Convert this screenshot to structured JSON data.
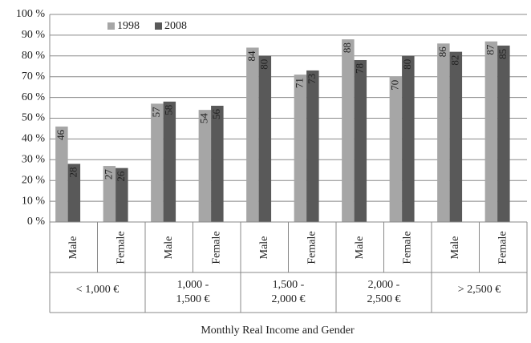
{
  "chart_data": {
    "type": "bar",
    "x_label": "Monthly Real Income and Gender",
    "categories": [
      "Male",
      "Female",
      "Male",
      "Female",
      "Male",
      "Female",
      "Male",
      "Female",
      "Male",
      "Female"
    ],
    "groups": [
      [
        "< 1,000 €"
      ],
      [
        "1,000 -",
        "1,500 €"
      ],
      [
        "1,500 -",
        "2,000 €"
      ],
      [
        "2,000 -",
        "2,500 €"
      ],
      [
        "> 2,500 €"
      ]
    ],
    "series": [
      {
        "name": "1998",
        "color": "#a6a6a6",
        "values": [
          46,
          27,
          57,
          54,
          84,
          71,
          88,
          70,
          86,
          87
        ]
      },
      {
        "name": "2008",
        "color": "#595959",
        "values": [
          28,
          26,
          58,
          56,
          80,
          73,
          78,
          80,
          82,
          85
        ]
      }
    ],
    "ylim": [
      0,
      100
    ],
    "yticks": [
      {
        "value": 0,
        "label": "0 %"
      },
      {
        "value": 10,
        "label": "10 %"
      },
      {
        "value": 20,
        "label": "20 %"
      },
      {
        "value": 30,
        "label": "30 %"
      },
      {
        "value": 40,
        "label": "40 %"
      },
      {
        "value": 50,
        "label": "50 %"
      },
      {
        "value": 60,
        "label": "60 %"
      },
      {
        "value": 70,
        "label": "70 %"
      },
      {
        "value": 80,
        "label": "80 %"
      },
      {
        "value": 90,
        "label": "90 %"
      },
      {
        "value": 100,
        "label": "100 %"
      }
    ],
    "grid": true
  }
}
